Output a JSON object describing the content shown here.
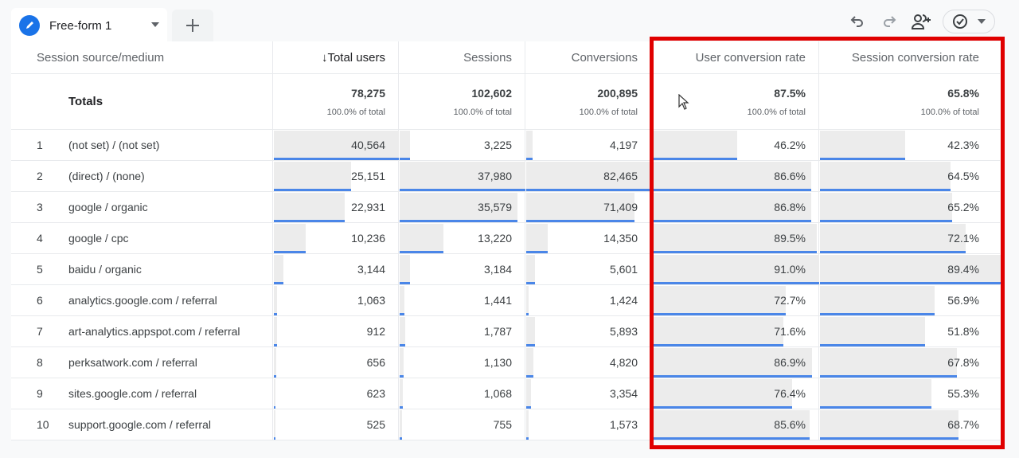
{
  "tab": {
    "label": "Free-form 1",
    "icon": "pencil-icon"
  },
  "toolbar": {
    "undo": "undo-icon",
    "redo": "redo-icon",
    "share": "share-users-icon",
    "status": "check-circle-icon"
  },
  "colors": {
    "bar_fill": "#ececec",
    "bar_line": "#4a86e8",
    "highlight": "#e00000"
  },
  "table": {
    "headers": [
      "Session source/medium",
      "↓Total users",
      "Sessions",
      "Conversions",
      "User conversion rate",
      "Session conversion rate"
    ],
    "totals": {
      "label": "Totals",
      "values": [
        "78,275",
        "102,602",
        "200,895",
        "87.5%",
        "65.8%"
      ],
      "pct": [
        "100.0% of total",
        "100.0% of total",
        "100.0% of total",
        "100.0% of total",
        "100.0% of total"
      ]
    },
    "rows": [
      [
        "1",
        "(not set) / (not set)",
        "40,564",
        "3,225",
        "4,197",
        "46.2%",
        "42.3%"
      ],
      [
        "2",
        "(direct) / (none)",
        "25,151",
        "37,980",
        "82,465",
        "86.6%",
        "64.5%"
      ],
      [
        "3",
        "google / organic",
        "22,931",
        "35,579",
        "71,409",
        "86.8%",
        "65.2%"
      ],
      [
        "4",
        "google / cpc",
        "10,236",
        "13,220",
        "14,350",
        "89.5%",
        "72.1%"
      ],
      [
        "5",
        "baidu / organic",
        "3,144",
        "3,184",
        "5,601",
        "91.0%",
        "89.4%"
      ],
      [
        "6",
        "analytics.google.com / referral",
        "1,063",
        "1,441",
        "1,424",
        "72.7%",
        "56.9%"
      ],
      [
        "7",
        "art-analytics.appspot.com / referral",
        "912",
        "1,787",
        "5,893",
        "71.6%",
        "51.8%"
      ],
      [
        "8",
        "perksatwork.com / referral",
        "656",
        "1,130",
        "4,820",
        "86.9%",
        "67.8%"
      ],
      [
        "9",
        "sites.google.com / referral",
        "623",
        "1,068",
        "3,354",
        "76.4%",
        "55.3%"
      ],
      [
        "10",
        "support.google.com / referral",
        "525",
        "755",
        "1,573",
        "85.6%",
        "68.7%"
      ]
    ]
  }
}
